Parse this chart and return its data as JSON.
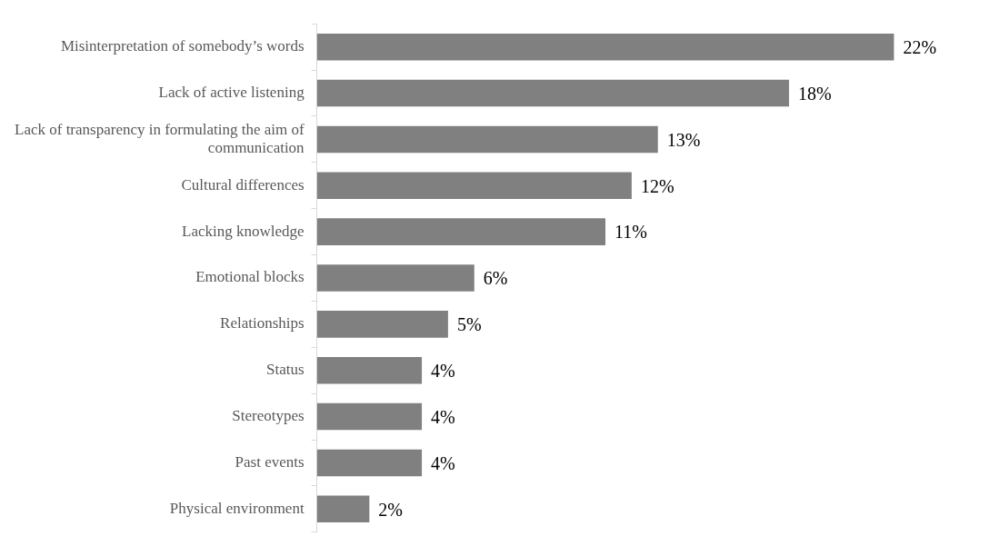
{
  "chart_data": {
    "type": "bar",
    "orientation": "horizontal",
    "categories": [
      "Misinterpretation of somebody’s words",
      "Lack of active listening",
      "Lack of transparency in formulating the aim of communication",
      "Cultural differences",
      "Lacking knowledge",
      "Emotional blocks",
      "Relationships",
      "Status",
      "Stereotypes",
      "Past events",
      "Physical environment"
    ],
    "values": [
      22,
      18,
      13,
      12,
      11,
      6,
      5,
      4,
      4,
      4,
      2
    ],
    "value_labels": [
      "22%",
      "18%",
      "13%",
      "12%",
      "11%",
      "6%",
      "5%",
      "4%",
      "4%",
      "4%",
      "2%"
    ],
    "color": "#808080",
    "tick_labels": "y",
    "legend": false
  }
}
